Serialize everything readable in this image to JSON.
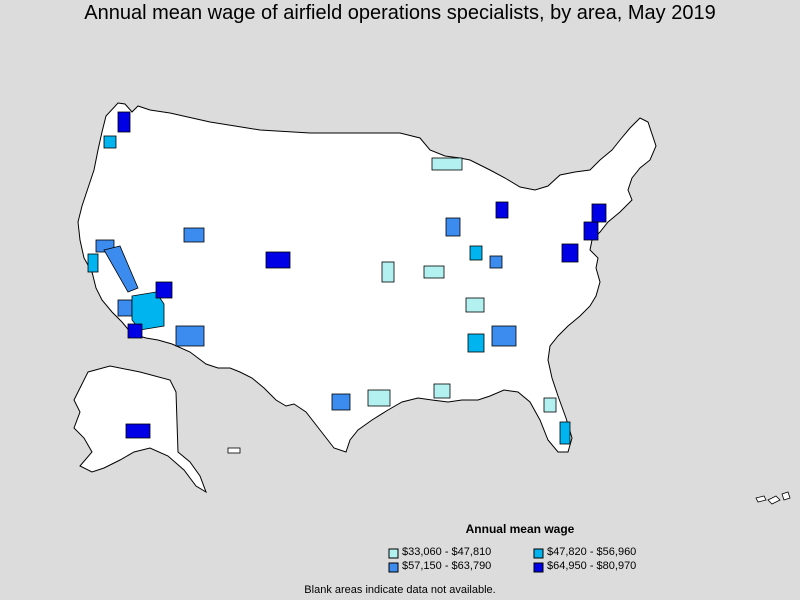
{
  "title": "Annual mean wage of airfield operations specialists, by area, May 2019",
  "legend": {
    "title": "Annual mean wage",
    "items": [
      {
        "label": "$33,060 - $47,810",
        "color": "#b3f0f0"
      },
      {
        "label": "$47,820 - $56,960",
        "color": "#00b4f0"
      },
      {
        "label": "$57,150 - $63,790",
        "color": "#3c8cf0"
      },
      {
        "label": "$64,950 - $80,970",
        "color": "#0000e6"
      }
    ]
  },
  "note": "Blank areas indicate data not available.",
  "colors": {
    "background": "#dcdcdc",
    "blank": "#ffffff",
    "border": "#000000"
  }
}
